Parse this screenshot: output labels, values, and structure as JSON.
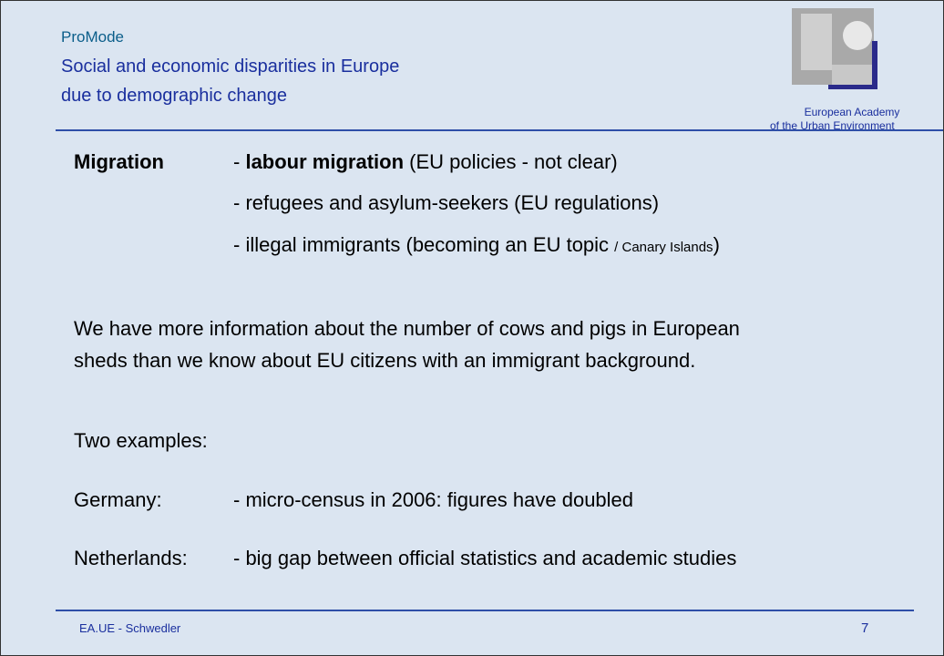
{
  "header": {
    "lines": [
      "ProMode",
      "Social and economic disparities in Europe",
      "due to demographic change"
    ],
    "logo": [
      "European Academy",
      "of the Urban Environment"
    ]
  },
  "topic": {
    "label": "Migration",
    "items": [
      [
        "- ",
        "labour migration",
        " (EU policies - not clear)"
      ],
      [
        "- refugees and asylum-seekers (EU regulations)"
      ],
      [
        "- illegal immigrants (becoming an EU topic ",
        "/ Canary Islands",
        ")"
      ]
    ]
  },
  "statement": [
    "We have more information about the number of cows and pigs in European",
    "sheds than we know about EU citizens with an immigrant background."
  ],
  "examples": {
    "label": "Two examples:",
    "rows": [
      {
        "country": "Germany:",
        "note": "- micro-census in 2006:  figures have doubled"
      },
      {
        "country": "Netherlands:",
        "note": "- big gap between official statistics and academic studies"
      }
    ]
  },
  "footer": {
    "author": "EA.UE - Schwedler",
    "page": "7"
  }
}
